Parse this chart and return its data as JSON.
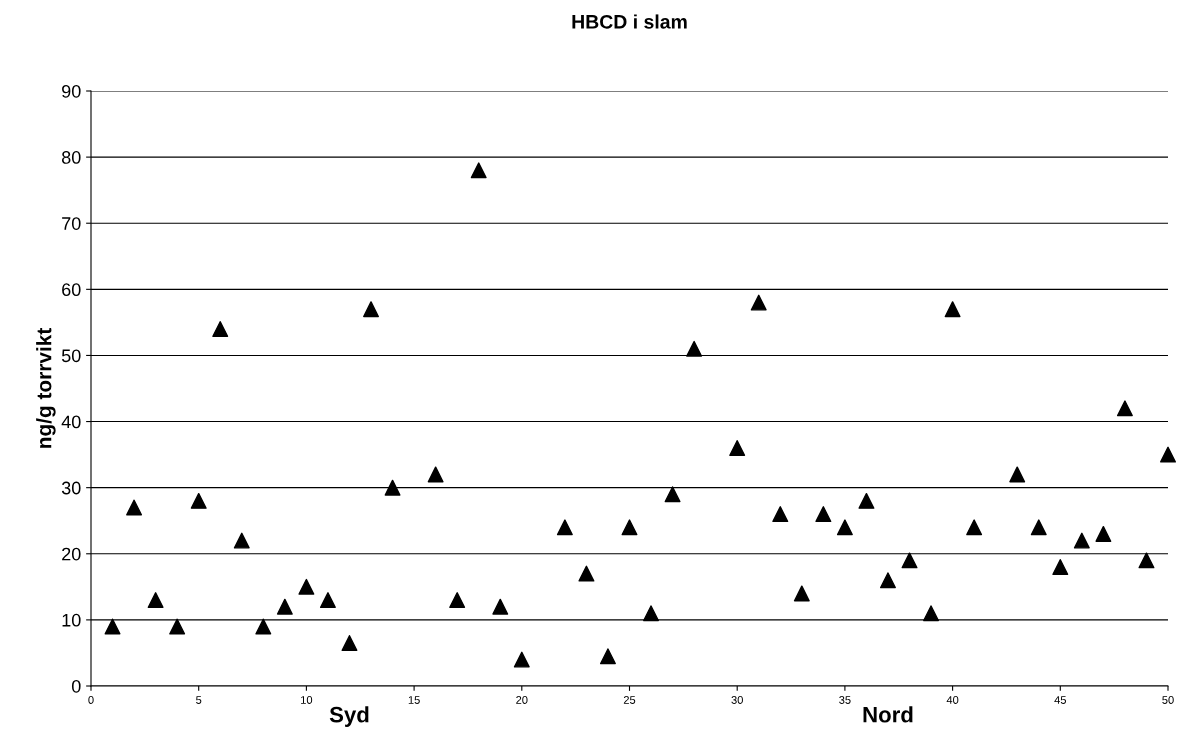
{
  "chart_data": {
    "type": "scatter",
    "title": "HBCD i slam",
    "ylabel": "ng/g torrvikt",
    "x": [
      1,
      2,
      3,
      4,
      5,
      6,
      7,
      8,
      9,
      10,
      11,
      12,
      13,
      14,
      16,
      17,
      18,
      19,
      20,
      22,
      23,
      24,
      25,
      26,
      27,
      28,
      30,
      31,
      32,
      33,
      34,
      35,
      36,
      37,
      38,
      39,
      40,
      41,
      43,
      44,
      45,
      46,
      47,
      48,
      49,
      50
    ],
    "values": [
      9,
      27,
      13,
      9,
      28,
      54,
      22,
      9,
      12,
      15,
      13,
      6.5,
      57,
      30,
      32,
      13,
      78,
      12,
      4,
      24,
      17,
      4.5,
      24,
      11,
      29,
      51,
      36,
      58,
      26,
      14,
      26,
      24,
      28,
      16,
      19,
      11,
      57,
      24,
      32,
      24,
      18,
      22,
      23,
      42,
      19,
      35
    ],
    "color": "#000000",
    "marker": "triangle",
    "xlim": [
      0,
      50
    ],
    "xticks": [
      0,
      5,
      10,
      15,
      20,
      25,
      30,
      35,
      40,
      45,
      50
    ],
    "ylim": [
      0,
      90
    ],
    "yticks": [
      0,
      10,
      20,
      30,
      40,
      50,
      60,
      70,
      80,
      90
    ],
    "grid": "y",
    "legend": false,
    "annotations": [
      "Syd",
      "Nord"
    ]
  }
}
